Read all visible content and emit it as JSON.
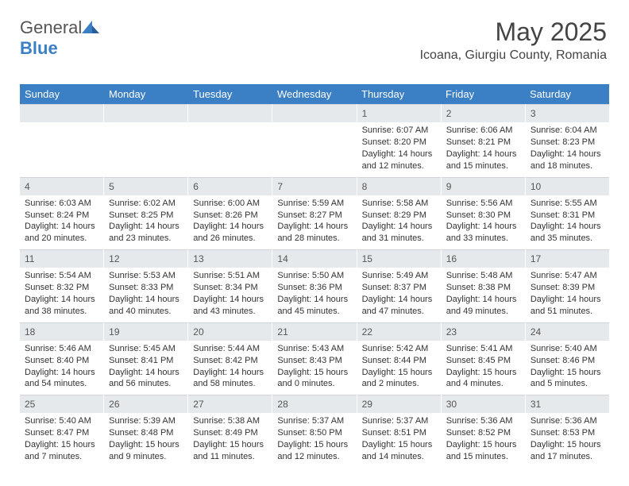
{
  "logo": {
    "text1": "General",
    "text2": "Blue"
  },
  "header": {
    "month_title": "May 2025",
    "location": "Icoana, Giurgiu County, Romania"
  },
  "colors": {
    "header_bg": "#3b7fc4",
    "daynum_bg": "#e5e9ec",
    "text": "#333333",
    "logo_gray": "#555555",
    "logo_blue": "#3b7fc4"
  },
  "weekdays": [
    "Sunday",
    "Monday",
    "Tuesday",
    "Wednesday",
    "Thursday",
    "Friday",
    "Saturday"
  ],
  "weeks": [
    [
      null,
      null,
      null,
      null,
      {
        "n": "1",
        "sr": "6:07 AM",
        "ss": "8:20 PM",
        "dl": "14 hours and 12 minutes."
      },
      {
        "n": "2",
        "sr": "6:06 AM",
        "ss": "8:21 PM",
        "dl": "14 hours and 15 minutes."
      },
      {
        "n": "3",
        "sr": "6:04 AM",
        "ss": "8:23 PM",
        "dl": "14 hours and 18 minutes."
      }
    ],
    [
      {
        "n": "4",
        "sr": "6:03 AM",
        "ss": "8:24 PM",
        "dl": "14 hours and 20 minutes."
      },
      {
        "n": "5",
        "sr": "6:02 AM",
        "ss": "8:25 PM",
        "dl": "14 hours and 23 minutes."
      },
      {
        "n": "6",
        "sr": "6:00 AM",
        "ss": "8:26 PM",
        "dl": "14 hours and 26 minutes."
      },
      {
        "n": "7",
        "sr": "5:59 AM",
        "ss": "8:27 PM",
        "dl": "14 hours and 28 minutes."
      },
      {
        "n": "8",
        "sr": "5:58 AM",
        "ss": "8:29 PM",
        "dl": "14 hours and 31 minutes."
      },
      {
        "n": "9",
        "sr": "5:56 AM",
        "ss": "8:30 PM",
        "dl": "14 hours and 33 minutes."
      },
      {
        "n": "10",
        "sr": "5:55 AM",
        "ss": "8:31 PM",
        "dl": "14 hours and 35 minutes."
      }
    ],
    [
      {
        "n": "11",
        "sr": "5:54 AM",
        "ss": "8:32 PM",
        "dl": "14 hours and 38 minutes."
      },
      {
        "n": "12",
        "sr": "5:53 AM",
        "ss": "8:33 PM",
        "dl": "14 hours and 40 minutes."
      },
      {
        "n": "13",
        "sr": "5:51 AM",
        "ss": "8:34 PM",
        "dl": "14 hours and 43 minutes."
      },
      {
        "n": "14",
        "sr": "5:50 AM",
        "ss": "8:36 PM",
        "dl": "14 hours and 45 minutes."
      },
      {
        "n": "15",
        "sr": "5:49 AM",
        "ss": "8:37 PM",
        "dl": "14 hours and 47 minutes."
      },
      {
        "n": "16",
        "sr": "5:48 AM",
        "ss": "8:38 PM",
        "dl": "14 hours and 49 minutes."
      },
      {
        "n": "17",
        "sr": "5:47 AM",
        "ss": "8:39 PM",
        "dl": "14 hours and 51 minutes."
      }
    ],
    [
      {
        "n": "18",
        "sr": "5:46 AM",
        "ss": "8:40 PM",
        "dl": "14 hours and 54 minutes."
      },
      {
        "n": "19",
        "sr": "5:45 AM",
        "ss": "8:41 PM",
        "dl": "14 hours and 56 minutes."
      },
      {
        "n": "20",
        "sr": "5:44 AM",
        "ss": "8:42 PM",
        "dl": "14 hours and 58 minutes."
      },
      {
        "n": "21",
        "sr": "5:43 AM",
        "ss": "8:43 PM",
        "dl": "15 hours and 0 minutes."
      },
      {
        "n": "22",
        "sr": "5:42 AM",
        "ss": "8:44 PM",
        "dl": "15 hours and 2 minutes."
      },
      {
        "n": "23",
        "sr": "5:41 AM",
        "ss": "8:45 PM",
        "dl": "15 hours and 4 minutes."
      },
      {
        "n": "24",
        "sr": "5:40 AM",
        "ss": "8:46 PM",
        "dl": "15 hours and 5 minutes."
      }
    ],
    [
      {
        "n": "25",
        "sr": "5:40 AM",
        "ss": "8:47 PM",
        "dl": "15 hours and 7 minutes."
      },
      {
        "n": "26",
        "sr": "5:39 AM",
        "ss": "8:48 PM",
        "dl": "15 hours and 9 minutes."
      },
      {
        "n": "27",
        "sr": "5:38 AM",
        "ss": "8:49 PM",
        "dl": "15 hours and 11 minutes."
      },
      {
        "n": "28",
        "sr": "5:37 AM",
        "ss": "8:50 PM",
        "dl": "15 hours and 12 minutes."
      },
      {
        "n": "29",
        "sr": "5:37 AM",
        "ss": "8:51 PM",
        "dl": "15 hours and 14 minutes."
      },
      {
        "n": "30",
        "sr": "5:36 AM",
        "ss": "8:52 PM",
        "dl": "15 hours and 15 minutes."
      },
      {
        "n": "31",
        "sr": "5:36 AM",
        "ss": "8:53 PM",
        "dl": "15 hours and 17 minutes."
      }
    ]
  ],
  "labels": {
    "sunrise": "Sunrise:",
    "sunset": "Sunset:",
    "daylight": "Daylight:"
  }
}
